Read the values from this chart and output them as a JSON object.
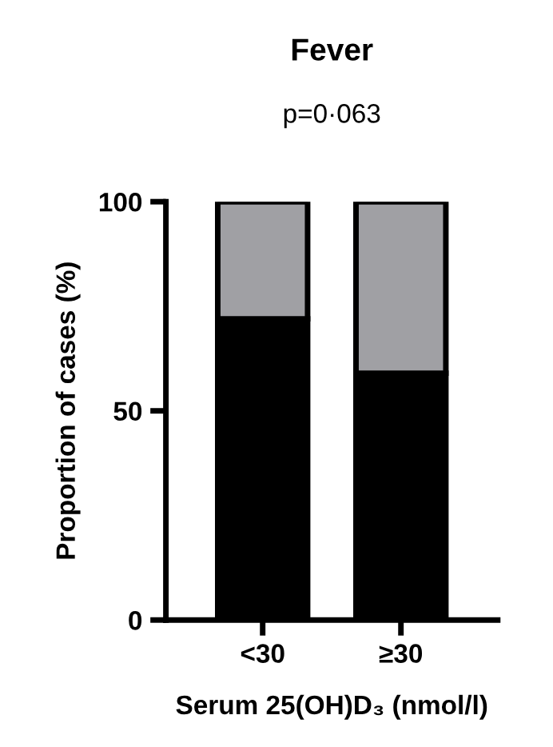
{
  "chart_data": {
    "type": "bar",
    "stacked": true,
    "title": "Fever",
    "subtitle": "p=0·063",
    "xlabel": "Serum 25(OH)D₃ (nmol/l)",
    "ylabel": "Proportion of cases (%)",
    "categories": [
      "<30",
      "≥30"
    ],
    "series": [
      {
        "color": "#000000",
        "values": [
          72,
          59
        ]
      },
      {
        "color": "#a0a0a4",
        "values": [
          28,
          41
        ]
      }
    ],
    "ylim": [
      0,
      100
    ],
    "yticks": [
      0,
      50,
      100
    ],
    "grid": false,
    "legend": false
  }
}
